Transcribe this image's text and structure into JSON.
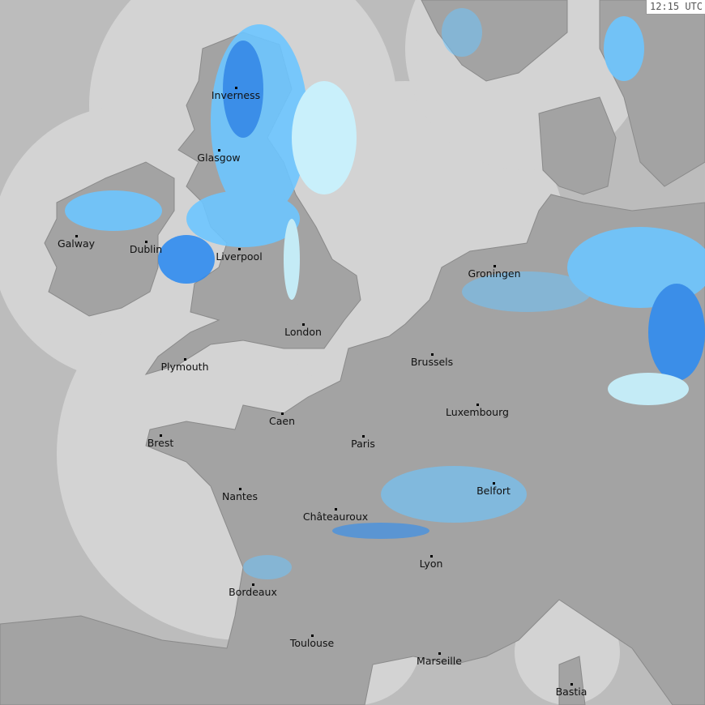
{
  "timestamp": "12:15 UTC",
  "colors": {
    "sea_outside_coverage": "#bcbcbc",
    "sea_in_coverage": "#d3d3d3",
    "land": "#a3a3a3",
    "precip_light": "#c8f3ff",
    "precip_moderate": "#6cc6ff",
    "precip_heavy": "#2f8cf0"
  },
  "cities": [
    {
      "name": "Inverness"
    },
    {
      "name": "Glasgow"
    },
    {
      "name": "Galway"
    },
    {
      "name": "Dublin"
    },
    {
      "name": "Liverpool"
    },
    {
      "name": "London"
    },
    {
      "name": "Plymouth"
    },
    {
      "name": "Groningen"
    },
    {
      "name": "Brussels"
    },
    {
      "name": "Luxembourg"
    },
    {
      "name": "Caen"
    },
    {
      "name": "Brest"
    },
    {
      "name": "Paris"
    },
    {
      "name": "Nantes"
    },
    {
      "name": "Belfort"
    },
    {
      "name": "Châteauroux"
    },
    {
      "name": "Lyon"
    },
    {
      "name": "Bordeaux"
    },
    {
      "name": "Toulouse"
    },
    {
      "name": "Marseille"
    },
    {
      "name": "Bastia"
    }
  ]
}
